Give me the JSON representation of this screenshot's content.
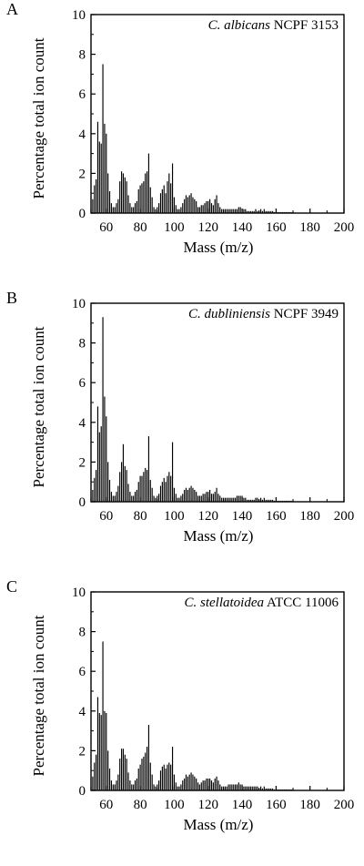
{
  "chart_data": [
    {
      "panel": "A",
      "type": "bar",
      "species": "C. albicans",
      "strain": "NCPF 3153",
      "xlabel": "Mass (m/z)",
      "ylabel": "Percentage total ion count",
      "xlim": [
        51,
        200
      ],
      "ylim": [
        0,
        10
      ],
      "xticks": [
        "60",
        "80",
        "100",
        "120",
        "140",
        "160",
        "180",
        "200"
      ],
      "yticks": [
        "0",
        "2",
        "4",
        "6",
        "8",
        "10"
      ],
      "x": [
        51,
        52,
        53,
        54,
        55,
        56,
        57,
        58,
        59,
        60,
        61,
        62,
        63,
        64,
        65,
        66,
        67,
        68,
        69,
        70,
        71,
        72,
        73,
        74,
        75,
        76,
        77,
        78,
        79,
        80,
        81,
        82,
        83,
        84,
        85,
        86,
        87,
        88,
        89,
        90,
        91,
        92,
        93,
        94,
        95,
        96,
        97,
        98,
        99,
        100,
        101,
        102,
        103,
        104,
        105,
        106,
        107,
        108,
        109,
        110,
        111,
        112,
        113,
        114,
        115,
        116,
        117,
        118,
        119,
        120,
        121,
        122,
        123,
        124,
        125,
        126,
        127,
        128,
        129,
        130,
        131,
        132,
        133,
        134,
        135,
        136,
        137,
        138,
        139,
        140,
        141,
        142,
        143,
        144,
        145,
        146,
        147,
        148,
        149,
        150,
        151,
        152,
        153,
        154,
        155,
        156,
        157,
        158,
        159,
        160,
        161,
        162,
        163,
        164,
        165,
        166,
        167,
        168,
        169,
        170
      ],
      "values": [
        0.2,
        0.7,
        1.4,
        1.7,
        4.6,
        3.6,
        3.5,
        7.5,
        4.5,
        4.0,
        2.0,
        1.1,
        0.5,
        0.3,
        0.3,
        0.5,
        0.7,
        1.6,
        2.1,
        2.0,
        1.8,
        1.6,
        0.9,
        0.5,
        0.3,
        0.3,
        0.5,
        0.6,
        1.2,
        1.4,
        1.5,
        1.6,
        2.0,
        2.1,
        3.0,
        1.3,
        0.8,
        0.3,
        0.2,
        0.3,
        0.5,
        1.0,
        1.2,
        1.4,
        1.0,
        1.6,
        2.0,
        1.5,
        2.5,
        0.8,
        0.4,
        0.2,
        0.2,
        0.3,
        0.5,
        0.7,
        0.9,
        0.8,
        0.9,
        1.0,
        0.8,
        0.7,
        0.6,
        0.3,
        0.3,
        0.4,
        0.4,
        0.5,
        0.6,
        0.6,
        0.7,
        0.5,
        0.4,
        0.7,
        0.9,
        0.5,
        0.3,
        0.2,
        0.2,
        0.2,
        0.2,
        0.2,
        0.2,
        0.2,
        0.2,
        0.2,
        0.2,
        0.3,
        0.3,
        0.2,
        0.2,
        0.2,
        0.1,
        0.1,
        0.1,
        0.1,
        0.1,
        0.2,
        0.1,
        0.1,
        0.2,
        0.1,
        0.2,
        0.1,
        0.1,
        0.1,
        0.1,
        0.1,
        0.05,
        0.05,
        0.05,
        0.05,
        0.05,
        0.05,
        0.05,
        0.05,
        0.05,
        0.05,
        0.05,
        0.05
      ]
    },
    {
      "panel": "B",
      "type": "bar",
      "species": "C. dubliniensis",
      "strain": "NCPF 3949",
      "xlabel": "Mass (m/z)",
      "ylabel": "Percentage total ion count",
      "xlim": [
        51,
        200
      ],
      "ylim": [
        0,
        10
      ],
      "xticks": [
        "60",
        "80",
        "100",
        "120",
        "140",
        "160",
        "180",
        "200"
      ],
      "yticks": [
        "0",
        "2",
        "4",
        "6",
        "8",
        "10"
      ],
      "x": [
        51,
        52,
        53,
        54,
        55,
        56,
        57,
        58,
        59,
        60,
        61,
        62,
        63,
        64,
        65,
        66,
        67,
        68,
        69,
        70,
        71,
        72,
        73,
        74,
        75,
        76,
        77,
        78,
        79,
        80,
        81,
        82,
        83,
        84,
        85,
        86,
        87,
        88,
        89,
        90,
        91,
        92,
        93,
        94,
        95,
        96,
        97,
        98,
        99,
        100,
        101,
        102,
        103,
        104,
        105,
        106,
        107,
        108,
        109,
        110,
        111,
        112,
        113,
        114,
        115,
        116,
        117,
        118,
        119,
        120,
        121,
        122,
        123,
        124,
        125,
        126,
        127,
        128,
        129,
        130,
        131,
        132,
        133,
        134,
        135,
        136,
        137,
        138,
        139,
        140,
        141,
        142,
        143,
        144,
        145,
        146,
        147,
        148,
        149,
        150,
        151,
        152,
        153,
        154,
        155,
        156,
        157,
        158,
        159,
        160,
        161,
        162,
        163,
        164,
        165,
        166,
        167,
        168,
        169,
        170
      ],
      "values": [
        0.2,
        0.6,
        1.2,
        1.6,
        4.8,
        3.5,
        3.8,
        9.3,
        5.3,
        4.3,
        2.0,
        1.1,
        0.5,
        0.3,
        0.3,
        0.5,
        0.8,
        1.5,
        2.0,
        2.9,
        1.8,
        1.6,
        0.9,
        0.5,
        0.3,
        0.3,
        0.5,
        0.6,
        1.0,
        1.3,
        1.3,
        1.5,
        1.7,
        1.6,
        3.3,
        1.1,
        0.7,
        0.3,
        0.2,
        0.3,
        0.4,
        0.8,
        1.0,
        1.2,
        1.0,
        1.3,
        1.5,
        1.3,
        3.0,
        0.7,
        0.4,
        0.2,
        0.2,
        0.3,
        0.4,
        0.6,
        0.7,
        0.6,
        0.7,
        0.8,
        0.7,
        0.6,
        0.5,
        0.3,
        0.3,
        0.3,
        0.4,
        0.4,
        0.5,
        0.5,
        0.6,
        0.4,
        0.4,
        0.5,
        0.7,
        0.4,
        0.3,
        0.2,
        0.2,
        0.2,
        0.2,
        0.2,
        0.2,
        0.2,
        0.2,
        0.2,
        0.3,
        0.3,
        0.3,
        0.3,
        0.2,
        0.2,
        0.1,
        0.1,
        0.1,
        0.1,
        0.1,
        0.2,
        0.2,
        0.1,
        0.2,
        0.1,
        0.2,
        0.1,
        0.1,
        0.1,
        0.1,
        0.1,
        0.05,
        0.05,
        0.05,
        0.05,
        0.05,
        0.05,
        0.05,
        0.05,
        0.05,
        0.05,
        0.05,
        0.05
      ]
    },
    {
      "panel": "C",
      "type": "bar",
      "species": "C. stellatoidea",
      "strain": "ATCC 11006",
      "xlabel": "Mass (m/z)",
      "ylabel": "Percentage total ion count",
      "xlim": [
        51,
        200
      ],
      "ylim": [
        0,
        10
      ],
      "xticks": [
        "60",
        "80",
        "100",
        "120",
        "140",
        "160",
        "180",
        "200"
      ],
      "yticks": [
        "0",
        "2",
        "4",
        "6",
        "8",
        "10"
      ],
      "x": [
        51,
        52,
        53,
        54,
        55,
        56,
        57,
        58,
        59,
        60,
        61,
        62,
        63,
        64,
        65,
        66,
        67,
        68,
        69,
        70,
        71,
        72,
        73,
        74,
        75,
        76,
        77,
        78,
        79,
        80,
        81,
        82,
        83,
        84,
        85,
        86,
        87,
        88,
        89,
        90,
        91,
        92,
        93,
        94,
        95,
        96,
        97,
        98,
        99,
        100,
        101,
        102,
        103,
        104,
        105,
        106,
        107,
        108,
        109,
        110,
        111,
        112,
        113,
        114,
        115,
        116,
        117,
        118,
        119,
        120,
        121,
        122,
        123,
        124,
        125,
        126,
        127,
        128,
        129,
        130,
        131,
        132,
        133,
        134,
        135,
        136,
        137,
        138,
        139,
        140,
        141,
        142,
        143,
        144,
        145,
        146,
        147,
        148,
        149,
        150,
        151,
        152,
        153,
        154,
        155,
        156,
        157,
        158,
        159,
        160,
        161,
        162,
        163,
        164,
        165,
        166,
        167,
        168,
        169,
        170
      ],
      "values": [
        0.2,
        0.7,
        1.4,
        1.8,
        4.7,
        3.9,
        3.8,
        7.5,
        4.0,
        3.9,
        2.0,
        1.1,
        0.5,
        0.3,
        0.3,
        0.5,
        0.8,
        1.6,
        2.1,
        2.1,
        1.8,
        1.6,
        0.9,
        0.5,
        0.3,
        0.3,
        0.5,
        0.6,
        1.1,
        1.3,
        1.6,
        1.7,
        1.9,
        2.2,
        3.3,
        1.4,
        0.8,
        0.3,
        0.2,
        0.3,
        0.5,
        1.0,
        1.2,
        1.3,
        1.1,
        1.3,
        1.4,
        1.3,
        2.2,
        0.8,
        0.4,
        0.2,
        0.2,
        0.3,
        0.5,
        0.6,
        0.8,
        0.7,
        0.8,
        0.9,
        0.8,
        0.7,
        0.6,
        0.4,
        0.3,
        0.4,
        0.5,
        0.5,
        0.6,
        0.6,
        0.6,
        0.5,
        0.4,
        0.6,
        0.7,
        0.5,
        0.3,
        0.2,
        0.2,
        0.2,
        0.2,
        0.3,
        0.3,
        0.3,
        0.3,
        0.3,
        0.3,
        0.4,
        0.3,
        0.3,
        0.2,
        0.2,
        0.2,
        0.2,
        0.2,
        0.2,
        0.2,
        0.2,
        0.2,
        0.1,
        0.2,
        0.1,
        0.2,
        0.1,
        0.1,
        0.1,
        0.1,
        0.1,
        0.05,
        0.05,
        0.05,
        0.05,
        0.05,
        0.05,
        0.05,
        0.05,
        0.05,
        0.05,
        0.05,
        0.05
      ]
    }
  ]
}
